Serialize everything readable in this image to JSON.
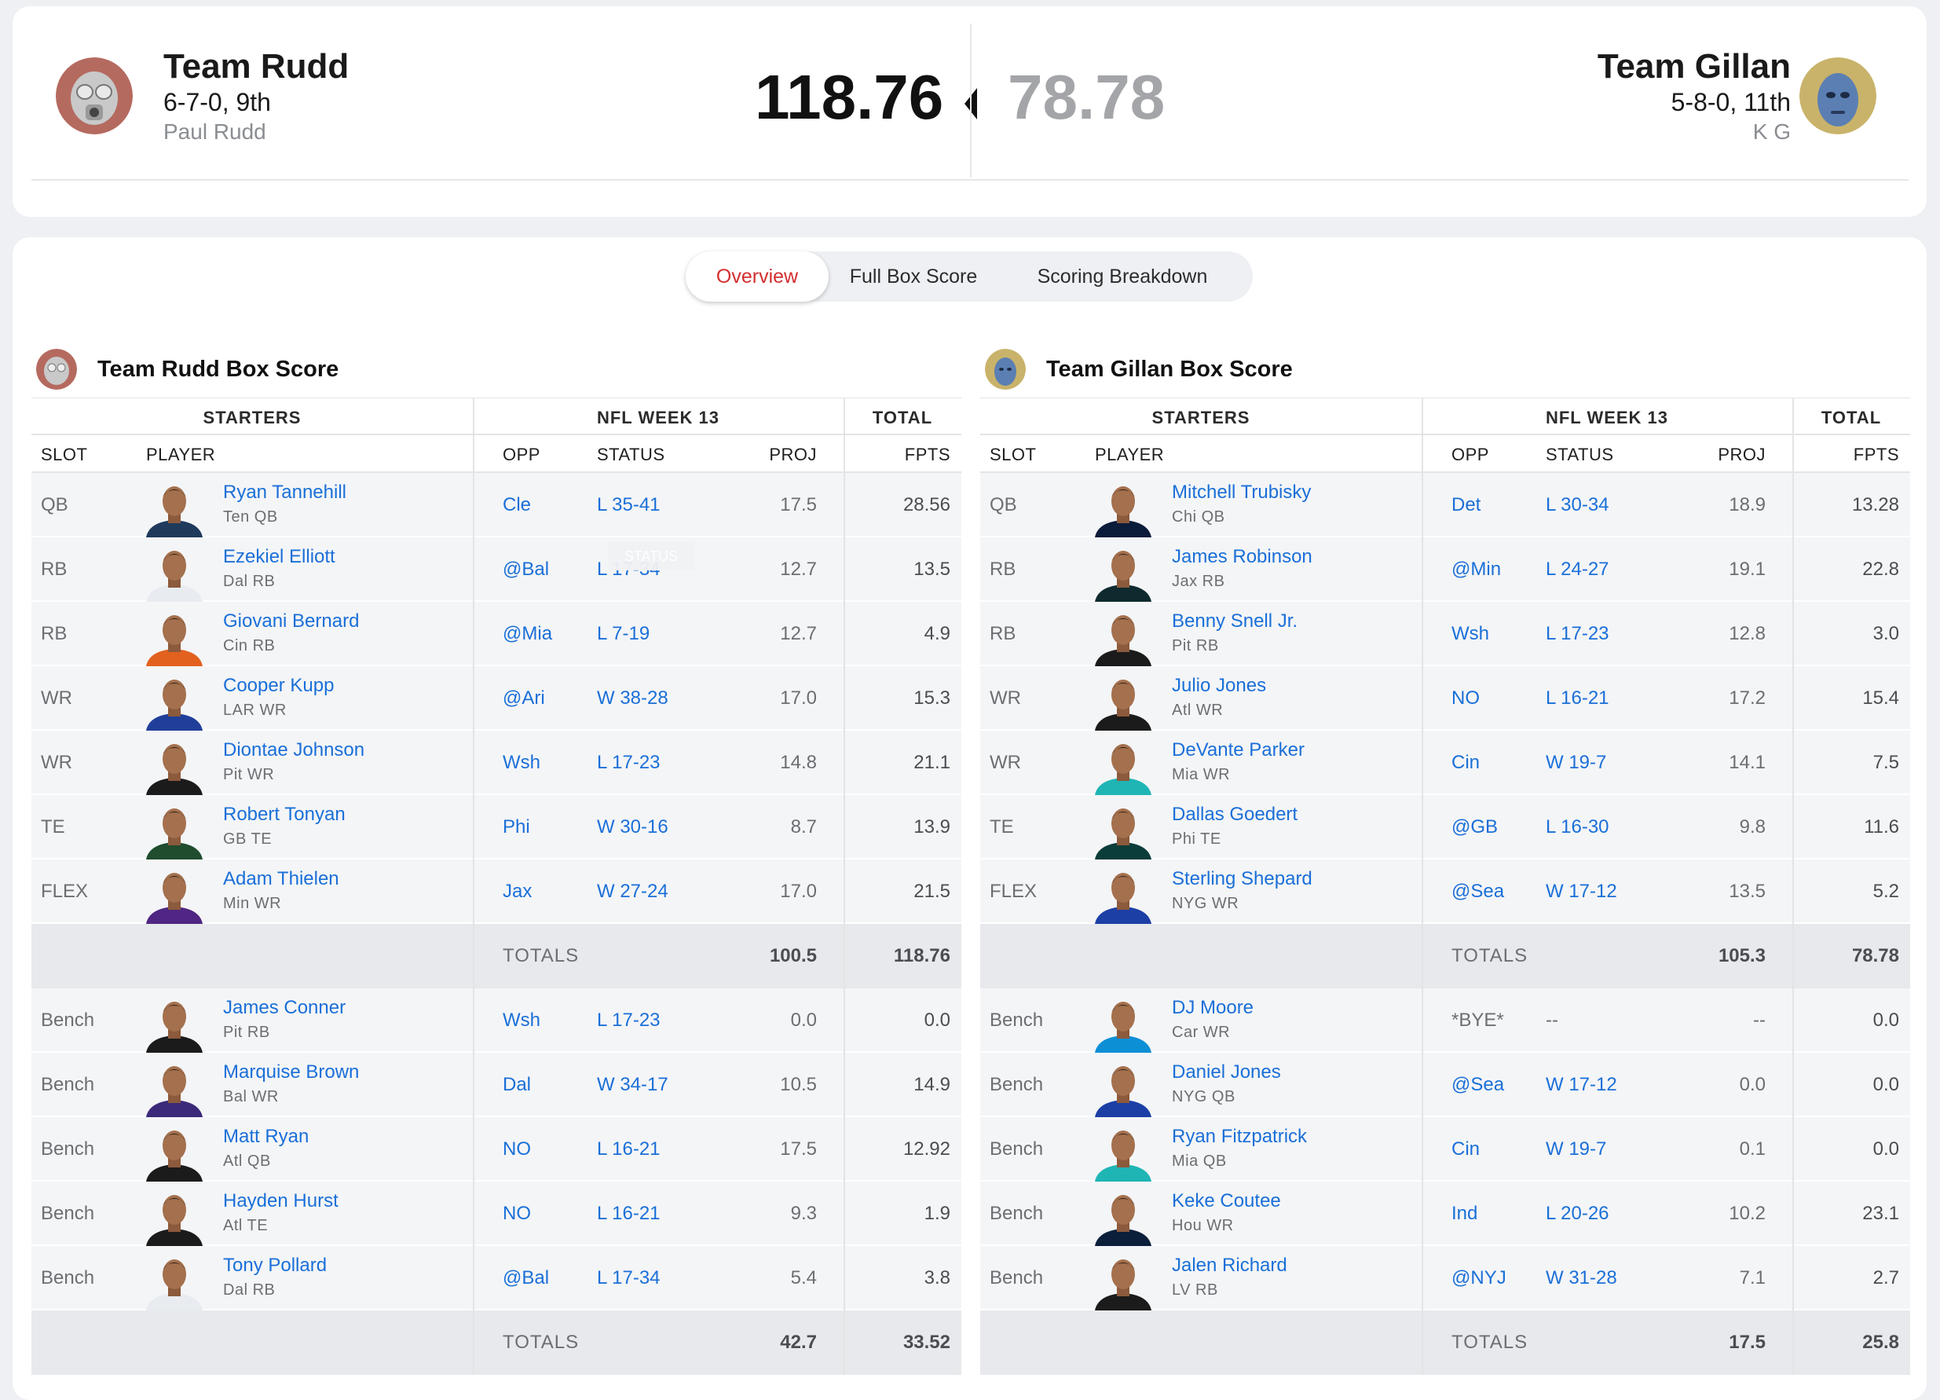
{
  "matchup": {
    "home": {
      "name": "Team Rudd",
      "record": "6-7-0, 9th",
      "owner": "Paul Rudd",
      "score": "118.76"
    },
    "away": {
      "name": "Team Gillan",
      "record": "5-8-0, 11th",
      "owner": "K G",
      "score": "78.78"
    }
  },
  "tabs": [
    "Overview",
    "Full Box Score",
    "Scoring Breakdown"
  ],
  "active_tab": "Overview",
  "headers": {
    "starters": "STARTERS",
    "week": "NFL WEEK 13",
    "total": "TOTAL",
    "slot": "SLOT",
    "player": "PLAYER",
    "opp": "OPP",
    "status": "STATUS",
    "proj": "PROJ",
    "fpts": "FPTS",
    "totals": "TOTALS"
  },
  "tooltip": "STATUS",
  "colors": {
    "link": "#1a6fd8",
    "active_tab": "#d32f2f",
    "row_bg": "#f4f5f7",
    "totals_bg": "#e8e9ec"
  },
  "boxes": [
    {
      "title": "Team Rudd Box Score",
      "starters": [
        {
          "slot": "QB",
          "name": "Ryan Tannehill",
          "meta": "Ten  QB",
          "opp": "Cle",
          "status": "L 35-41",
          "proj": "17.5",
          "fpts": "28.56",
          "jersey": "#1f3a5c"
        },
        {
          "slot": "RB",
          "name": "Ezekiel Elliott",
          "meta": "Dal  RB",
          "opp": "@Bal",
          "status": "L 17-34",
          "proj": "12.7",
          "fpts": "13.5",
          "jersey": "#e8ecf1"
        },
        {
          "slot": "RB",
          "name": "Giovani Bernard",
          "meta": "Cin  RB",
          "opp": "@Mia",
          "status": "L 7-19",
          "proj": "12.7",
          "fpts": "4.9",
          "jersey": "#e2611f"
        },
        {
          "slot": "WR",
          "name": "Cooper Kupp",
          "meta": "LAR  WR",
          "opp": "@Ari",
          "status": "W 38-28",
          "proj": "17.0",
          "fpts": "15.3",
          "jersey": "#1f3f9a"
        },
        {
          "slot": "WR",
          "name": "Diontae Johnson",
          "meta": "Pit  WR",
          "opp": "Wsh",
          "status": "L 17-23",
          "proj": "14.8",
          "fpts": "21.1",
          "jersey": "#1b1b1b"
        },
        {
          "slot": "TE",
          "name": "Robert Tonyan",
          "meta": "GB  TE",
          "opp": "Phi",
          "status": "W 30-16",
          "proj": "8.7",
          "fpts": "13.9",
          "jersey": "#1f4d2e"
        },
        {
          "slot": "FLEX",
          "name": "Adam Thielen",
          "meta": "Min  WR",
          "opp": "Jax",
          "status": "W 27-24",
          "proj": "17.0",
          "fpts": "21.5",
          "jersey": "#4f2683"
        }
      ],
      "starters_totals": {
        "proj": "100.5",
        "fpts": "118.76"
      },
      "bench": [
        {
          "slot": "Bench",
          "name": "James Conner",
          "meta": "Pit  RB",
          "opp": "Wsh",
          "status": "L 17-23",
          "proj": "0.0",
          "fpts": "0.0",
          "jersey": "#1b1b1b"
        },
        {
          "slot": "Bench",
          "name": "Marquise Brown",
          "meta": "Bal  WR",
          "opp": "Dal",
          "status": "W 34-17",
          "proj": "10.5",
          "fpts": "14.9",
          "jersey": "#3b2a7a"
        },
        {
          "slot": "Bench",
          "name": "Matt Ryan",
          "meta": "Atl  QB",
          "opp": "NO",
          "status": "L 16-21",
          "proj": "17.5",
          "fpts": "12.92",
          "jersey": "#1b1b1b"
        },
        {
          "slot": "Bench",
          "name": "Hayden Hurst",
          "meta": "Atl  TE",
          "opp": "NO",
          "status": "L 16-21",
          "proj": "9.3",
          "fpts": "1.9",
          "jersey": "#1b1b1b"
        },
        {
          "slot": "Bench",
          "name": "Tony Pollard",
          "meta": "Dal  RB",
          "opp": "@Bal",
          "status": "L 17-34",
          "proj": "5.4",
          "fpts": "3.8",
          "jersey": "#e8ecf1"
        }
      ],
      "bench_totals": {
        "proj": "42.7",
        "fpts": "33.52"
      }
    },
    {
      "title": "Team Gillan Box Score",
      "starters": [
        {
          "slot": "QB",
          "name": "Mitchell Trubisky",
          "meta": "Chi  QB",
          "opp": "Det",
          "status": "L 30-34",
          "proj": "18.9",
          "fpts": "13.28",
          "jersey": "#0b1b3a"
        },
        {
          "slot": "RB",
          "name": "James Robinson",
          "meta": "Jax  RB",
          "opp": "@Min",
          "status": "L 24-27",
          "proj": "19.1",
          "fpts": "22.8",
          "jersey": "#0e2a2f"
        },
        {
          "slot": "RB",
          "name": "Benny Snell Jr.",
          "meta": "Pit  RB",
          "opp": "Wsh",
          "status": "L 17-23",
          "proj": "12.8",
          "fpts": "3.0",
          "jersey": "#1b1b1b"
        },
        {
          "slot": "WR",
          "name": "Julio Jones",
          "meta": "Atl  WR",
          "opp": "NO",
          "status": "L 16-21",
          "proj": "17.2",
          "fpts": "15.4",
          "jersey": "#1b1b1b"
        },
        {
          "slot": "WR",
          "name": "DeVante Parker",
          "meta": "Mia  WR",
          "opp": "Cin",
          "status": "W 19-7",
          "proj": "14.1",
          "fpts": "7.5",
          "jersey": "#1fb5b5"
        },
        {
          "slot": "TE",
          "name": "Dallas Goedert",
          "meta": "Phi  TE",
          "opp": "@GB",
          "status": "L 16-30",
          "proj": "9.8",
          "fpts": "11.6",
          "jersey": "#0b3d3a"
        },
        {
          "slot": "FLEX",
          "name": "Sterling Shepard",
          "meta": "NYG  WR",
          "opp": "@Sea",
          "status": "W 17-12",
          "proj": "13.5",
          "fpts": "5.2",
          "jersey": "#1c3fa6"
        }
      ],
      "starters_totals": {
        "proj": "105.3",
        "fpts": "78.78"
      },
      "bench": [
        {
          "slot": "Bench",
          "name": "DJ Moore",
          "meta": "Car  WR",
          "opp": "*BYE*",
          "status": "--",
          "proj": "--",
          "fpts": "0.0",
          "jersey": "#0d8fd6",
          "bye": true
        },
        {
          "slot": "Bench",
          "name": "Daniel Jones",
          "meta": "NYG  QB",
          "opp": "@Sea",
          "status": "W 17-12",
          "proj": "0.0",
          "fpts": "0.0",
          "jersey": "#1c3fa6"
        },
        {
          "slot": "Bench",
          "name": "Ryan Fitzpatrick",
          "meta": "Mia  QB",
          "opp": "Cin",
          "status": "W 19-7",
          "proj": "0.1",
          "fpts": "0.0",
          "jersey": "#1fb5b5"
        },
        {
          "slot": "Bench",
          "name": "Keke Coutee",
          "meta": "Hou  WR",
          "opp": "Ind",
          "status": "L 20-26",
          "proj": "10.2",
          "fpts": "23.1",
          "jersey": "#0b1f3a"
        },
        {
          "slot": "Bench",
          "name": "Jalen Richard",
          "meta": "LV  RB",
          "opp": "@NYJ",
          "status": "W 31-28",
          "proj": "7.1",
          "fpts": "2.7",
          "jersey": "#1b1b1b"
        }
      ],
      "bench_totals": {
        "proj": "17.5",
        "fpts": "25.8"
      }
    }
  ]
}
